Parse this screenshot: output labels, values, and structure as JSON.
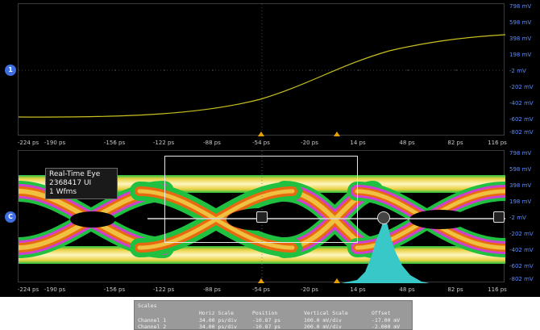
{
  "window": {
    "time_ticks": [
      "-224 ps",
      "-190 ps",
      "-156 ps",
      "-122 ps",
      "-88 ps",
      "-54 ps",
      "-20 ps",
      "14 ps",
      "48 ps",
      "82 ps",
      "116 ps"
    ],
    "volt_ticks": [
      "798 mV",
      "598 mV",
      "398 mV",
      "198 mV",
      "-2 mV",
      "-202 mV",
      "-402 mV",
      "-602 mV",
      "-802 mV"
    ],
    "channel_marker_top": "1",
    "channel_marker_bottom": "C"
  },
  "eye_label": {
    "line1": "Real-Time Eye",
    "line2": "2368417 UI",
    "line3": "1 Wfms"
  },
  "scales_panel": {
    "title": "Scales",
    "headers": [
      "Horiz Scale",
      "Position",
      "Vertical Scale",
      "Offset"
    ],
    "rows": [
      {
        "name": "Channel 1",
        "horiz": "34.00 ps/div",
        "position": "-10.87 ps",
        "vertical": "100.0 mV/div",
        "offset": "-17.00 mV"
      },
      {
        "name": "Channel 2",
        "horiz": "34.00 ps/div",
        "position": "-10.87 ps",
        "vertical": "200.0 mV/div",
        "offset": "-2.000 mV"
      }
    ]
  },
  "colors": {
    "accent_blue": "#3d6fe0",
    "trace_yellow": "#c8c020",
    "histogram": "#38c8c8",
    "trigger": "#e8a000"
  }
}
